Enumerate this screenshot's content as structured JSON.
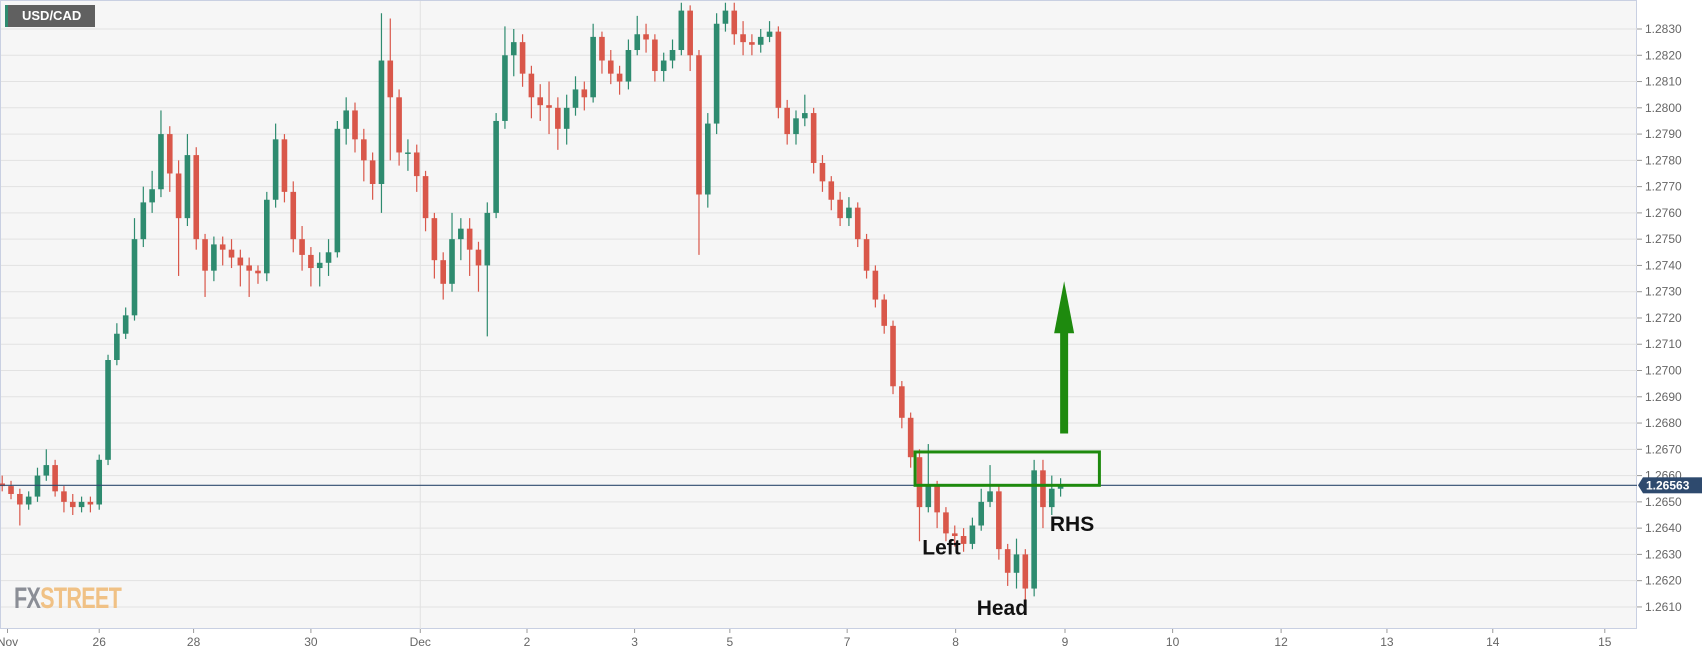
{
  "symbol": "USD/CAD",
  "logo": {
    "part1": "FX",
    "part2": "STREET"
  },
  "colors": {
    "up": "#2e8b6f",
    "down": "#d9574a",
    "background": "#f6f6f6",
    "grid": "#e2e2e2",
    "price_line": "#2e4a6e",
    "annotation": "#1e8a0e"
  },
  "chart_data": {
    "type": "candlestick",
    "title": "USD/CAD",
    "ylim": [
      1.26,
      1.284
    ],
    "y_ticks": [
      "1.2610",
      "1.2620",
      "1.2630",
      "1.2640",
      "1.2650",
      "1.2660",
      "1.2670",
      "1.2680",
      "1.2690",
      "1.2700",
      "1.2710",
      "1.2720",
      "1.2730",
      "1.2740",
      "1.2750",
      "1.2760",
      "1.2770",
      "1.2780",
      "1.2790",
      "1.2800",
      "1.2810",
      "1.2820",
      "1.2830"
    ],
    "x_ticks": [
      {
        "label": "Nov",
        "at": 0.6
      },
      {
        "label": "26",
        "at": 11
      },
      {
        "label": "28",
        "at": 21.7
      },
      {
        "label": "30",
        "at": 35
      },
      {
        "label": "Dec",
        "at": 47.4
      },
      {
        "label": "2",
        "at": 59.5
      },
      {
        "label": "3",
        "at": 71.7
      },
      {
        "label": "5",
        "at": 82.5
      },
      {
        "label": "7",
        "at": 95.8
      },
      {
        "label": "8",
        "at": 108.1
      },
      {
        "label": "9",
        "at": 120.5
      },
      {
        "label": "10",
        "at": 132.7
      },
      {
        "label": "12",
        "at": 145
      },
      {
        "label": "13",
        "at": 157
      },
      {
        "label": "14",
        "at": 169
      },
      {
        "label": "15",
        "at": 181.7
      }
    ],
    "x_range": [
      -0.3,
      185.3
    ],
    "grid": true,
    "current_price": "1.26563",
    "ohlc": [
      [
        1.2657,
        1.266,
        1.2654,
        1.2656
      ],
      [
        1.2656,
        1.2658,
        1.2651,
        1.2653
      ],
      [
        1.2653,
        1.2655,
        1.2641,
        1.2649
      ],
      [
        1.2649,
        1.2654,
        1.2647,
        1.2652
      ],
      [
        1.2652,
        1.2663,
        1.265,
        1.266
      ],
      [
        1.266,
        1.267,
        1.2658,
        1.2664
      ],
      [
        1.2664,
        1.2666,
        1.2652,
        1.2654
      ],
      [
        1.2654,
        1.2656,
        1.2646,
        1.265
      ],
      [
        1.265,
        1.2653,
        1.2645,
        1.2648
      ],
      [
        1.2648,
        1.2652,
        1.2646,
        1.265
      ],
      [
        1.265,
        1.2652,
        1.2646,
        1.2649
      ],
      [
        1.2649,
        1.2668,
        1.2647,
        1.2666
      ],
      [
        1.2666,
        1.2706,
        1.2664,
        1.2704
      ],
      [
        1.2704,
        1.2718,
        1.2702,
        1.2714
      ],
      [
        1.2714,
        1.2724,
        1.2712,
        1.2721
      ],
      [
        1.2721,
        1.2758,
        1.2719,
        1.275
      ],
      [
        1.275,
        1.277,
        1.2747,
        1.2764
      ],
      [
        1.2764,
        1.2776,
        1.276,
        1.2769
      ],
      [
        1.2769,
        1.2799,
        1.2766,
        1.279
      ],
      [
        1.279,
        1.2793,
        1.2768,
        1.2775
      ],
      [
        1.2775,
        1.278,
        1.2736,
        1.2758
      ],
      [
        1.2758,
        1.279,
        1.2755,
        1.2782
      ],
      [
        1.2782,
        1.2785,
        1.2746,
        1.275
      ],
      [
        1.275,
        1.2752,
        1.2728,
        1.2738
      ],
      [
        1.2738,
        1.2751,
        1.2734,
        1.2748
      ],
      [
        1.2748,
        1.2751,
        1.274,
        1.2746
      ],
      [
        1.2746,
        1.275,
        1.2739,
        1.2743
      ],
      [
        1.2743,
        1.2746,
        1.2732,
        1.274
      ],
      [
        1.274,
        1.2743,
        1.2728,
        1.2738
      ],
      [
        1.2738,
        1.274,
        1.2733,
        1.2737
      ],
      [
        1.2737,
        1.2768,
        1.2734,
        1.2765
      ],
      [
        1.2765,
        1.2794,
        1.2762,
        1.2788
      ],
      [
        1.2788,
        1.279,
        1.2764,
        1.2768
      ],
      [
        1.2768,
        1.2772,
        1.2745,
        1.275
      ],
      [
        1.275,
        1.2755,
        1.2738,
        1.2744
      ],
      [
        1.2744,
        1.2747,
        1.2732,
        1.2739
      ],
      [
        1.2739,
        1.2745,
        1.2732,
        1.2741
      ],
      [
        1.2741,
        1.275,
        1.2736,
        1.2745
      ],
      [
        1.2745,
        1.2795,
        1.2743,
        1.2792
      ],
      [
        1.2792,
        1.2804,
        1.2786,
        1.2799
      ],
      [
        1.2799,
        1.2802,
        1.2783,
        1.2788
      ],
      [
        1.2788,
        1.2792,
        1.2772,
        1.278
      ],
      [
        1.278,
        1.2783,
        1.2765,
        1.2771
      ],
      [
        1.2771,
        1.2836,
        1.276,
        1.2818
      ],
      [
        1.2818,
        1.2834,
        1.278,
        1.2804
      ],
      [
        1.2804,
        1.2807,
        1.2778,
        1.2783
      ],
      [
        1.2783,
        1.2788,
        1.2776,
        1.2783
      ],
      [
        1.2783,
        1.2786,
        1.2768,
        1.2774
      ],
      [
        1.2774,
        1.2776,
        1.2753,
        1.2758
      ],
      [
        1.2758,
        1.276,
        1.2735,
        1.2742
      ],
      [
        1.2742,
        1.2745,
        1.2727,
        1.2733
      ],
      [
        1.2733,
        1.276,
        1.273,
        1.275
      ],
      [
        1.275,
        1.2758,
        1.2742,
        1.2754
      ],
      [
        1.2754,
        1.2758,
        1.2736,
        1.2746
      ],
      [
        1.2746,
        1.2749,
        1.273,
        1.274
      ],
      [
        1.274,
        1.2764,
        1.2713,
        1.276
      ],
      [
        1.276,
        1.2798,
        1.2758,
        1.2795
      ],
      [
        1.2795,
        1.2831,
        1.2792,
        1.282
      ],
      [
        1.282,
        1.283,
        1.2812,
        1.2825
      ],
      [
        1.2825,
        1.2828,
        1.2808,
        1.2813
      ],
      [
        1.2813,
        1.2816,
        1.2796,
        1.2804
      ],
      [
        1.2804,
        1.2809,
        1.2795,
        1.2801
      ],
      [
        1.2801,
        1.281,
        1.279,
        1.28
      ],
      [
        1.28,
        1.2804,
        1.2784,
        1.2792
      ],
      [
        1.2792,
        1.2805,
        1.2786,
        1.28
      ],
      [
        1.28,
        1.2812,
        1.2797,
        1.2807
      ],
      [
        1.2807,
        1.281,
        1.2799,
        1.2804
      ],
      [
        1.2804,
        1.2832,
        1.2802,
        1.2827
      ],
      [
        1.2827,
        1.2829,
        1.2813,
        1.2818
      ],
      [
        1.2818,
        1.2822,
        1.2809,
        1.2813
      ],
      [
        1.2813,
        1.2816,
        1.2805,
        1.281
      ],
      [
        1.281,
        1.2826,
        1.2807,
        1.2822
      ],
      [
        1.2822,
        1.2835,
        1.282,
        1.2828
      ],
      [
        1.2828,
        1.2832,
        1.2821,
        1.2826
      ],
      [
        1.2826,
        1.2828,
        1.281,
        1.2814
      ],
      [
        1.2814,
        1.2821,
        1.281,
        1.2818
      ],
      [
        1.2818,
        1.2826,
        1.2815,
        1.2822
      ],
      [
        1.2822,
        1.284,
        1.282,
        1.2837
      ],
      [
        1.2837,
        1.2839,
        1.2814,
        1.282
      ],
      [
        1.282,
        1.2822,
        1.2744,
        1.2767
      ],
      [
        1.2767,
        1.2798,
        1.2762,
        1.2794
      ],
      [
        1.2794,
        1.2836,
        1.279,
        1.2832
      ],
      [
        1.2832,
        1.284,
        1.2829,
        1.2837
      ],
      [
        1.2837,
        1.284,
        1.2824,
        1.2828
      ],
      [
        1.2828,
        1.2833,
        1.282,
        1.2825
      ],
      [
        1.2825,
        1.2828,
        1.282,
        1.2824
      ],
      [
        1.2824,
        1.283,
        1.2821,
        1.2827
      ],
      [
        1.2827,
        1.2833,
        1.2825,
        1.2829
      ],
      [
        1.2829,
        1.2831,
        1.2796,
        1.28
      ],
      [
        1.28,
        1.2803,
        1.2786,
        1.279
      ],
      [
        1.279,
        1.2799,
        1.2786,
        1.2796
      ],
      [
        1.2796,
        1.2805,
        1.2793,
        1.2798
      ],
      [
        1.2798,
        1.28,
        1.2775,
        1.2779
      ],
      [
        1.2779,
        1.2782,
        1.2768,
        1.2772
      ],
      [
        1.2772,
        1.2774,
        1.2761,
        1.2765
      ],
      [
        1.2765,
        1.2768,
        1.2755,
        1.2758
      ],
      [
        1.2758,
        1.2766,
        1.2755,
        1.2762
      ],
      [
        1.2762,
        1.2764,
        1.2747,
        1.275
      ],
      [
        1.275,
        1.2752,
        1.2735,
        1.2738
      ],
      [
        1.2738,
        1.274,
        1.2724,
        1.2727
      ],
      [
        1.2727,
        1.2729,
        1.2714,
        1.2717
      ],
      [
        1.2717,
        1.2719,
        1.2691,
        1.2694
      ],
      [
        1.2694,
        1.2696,
        1.2678,
        1.2682
      ],
      [
        1.2682,
        1.2684,
        1.2663,
        1.2667
      ],
      [
        1.2667,
        1.267,
        1.2635,
        1.2648
      ],
      [
        1.2648,
        1.2672,
        1.2646,
        1.2656
      ],
      [
        1.2656,
        1.2658,
        1.264,
        1.2646
      ],
      [
        1.2646,
        1.2648,
        1.2635,
        1.2638
      ],
      [
        1.2638,
        1.2641,
        1.2633,
        1.2637
      ],
      [
        1.2637,
        1.264,
        1.2631,
        1.2634
      ],
      [
        1.2634,
        1.2644,
        1.2632,
        1.2641
      ],
      [
        1.2641,
        1.2655,
        1.2639,
        1.265
      ],
      [
        1.265,
        1.2664,
        1.2648,
        1.2654
      ],
      [
        1.2654,
        1.2656,
        1.2628,
        1.2632
      ],
      [
        1.2632,
        1.2634,
        1.2618,
        1.2623
      ],
      [
        1.2623,
        1.2636,
        1.2617,
        1.263
      ],
      [
        1.263,
        1.2632,
        1.2608,
        1.2617
      ],
      [
        1.2617,
        1.2666,
        1.2614,
        1.2662
      ],
      [
        1.2662,
        1.2666,
        1.264,
        1.2648
      ],
      [
        1.2648,
        1.266,
        1.2645,
        1.2655
      ],
      [
        1.2655,
        1.2659,
        1.2652,
        1.26563
      ]
    ],
    "annotations": {
      "box": {
        "x_from": 103.5,
        "x_to": 124.4,
        "price_from": 1.26563,
        "price_to": 1.2669
      },
      "arrow": {
        "at": 120.4,
        "price_from": 1.2676,
        "price_to": 1.2734,
        "direction": "up"
      },
      "labels": [
        {
          "text": "Left",
          "at": 106.5,
          "price": 1.263
        },
        {
          "text": "Head",
          "at": 113.4,
          "price": 1.2607
        },
        {
          "text": "RHS",
          "at": 121.3,
          "price": 1.2639
        }
      ]
    }
  }
}
